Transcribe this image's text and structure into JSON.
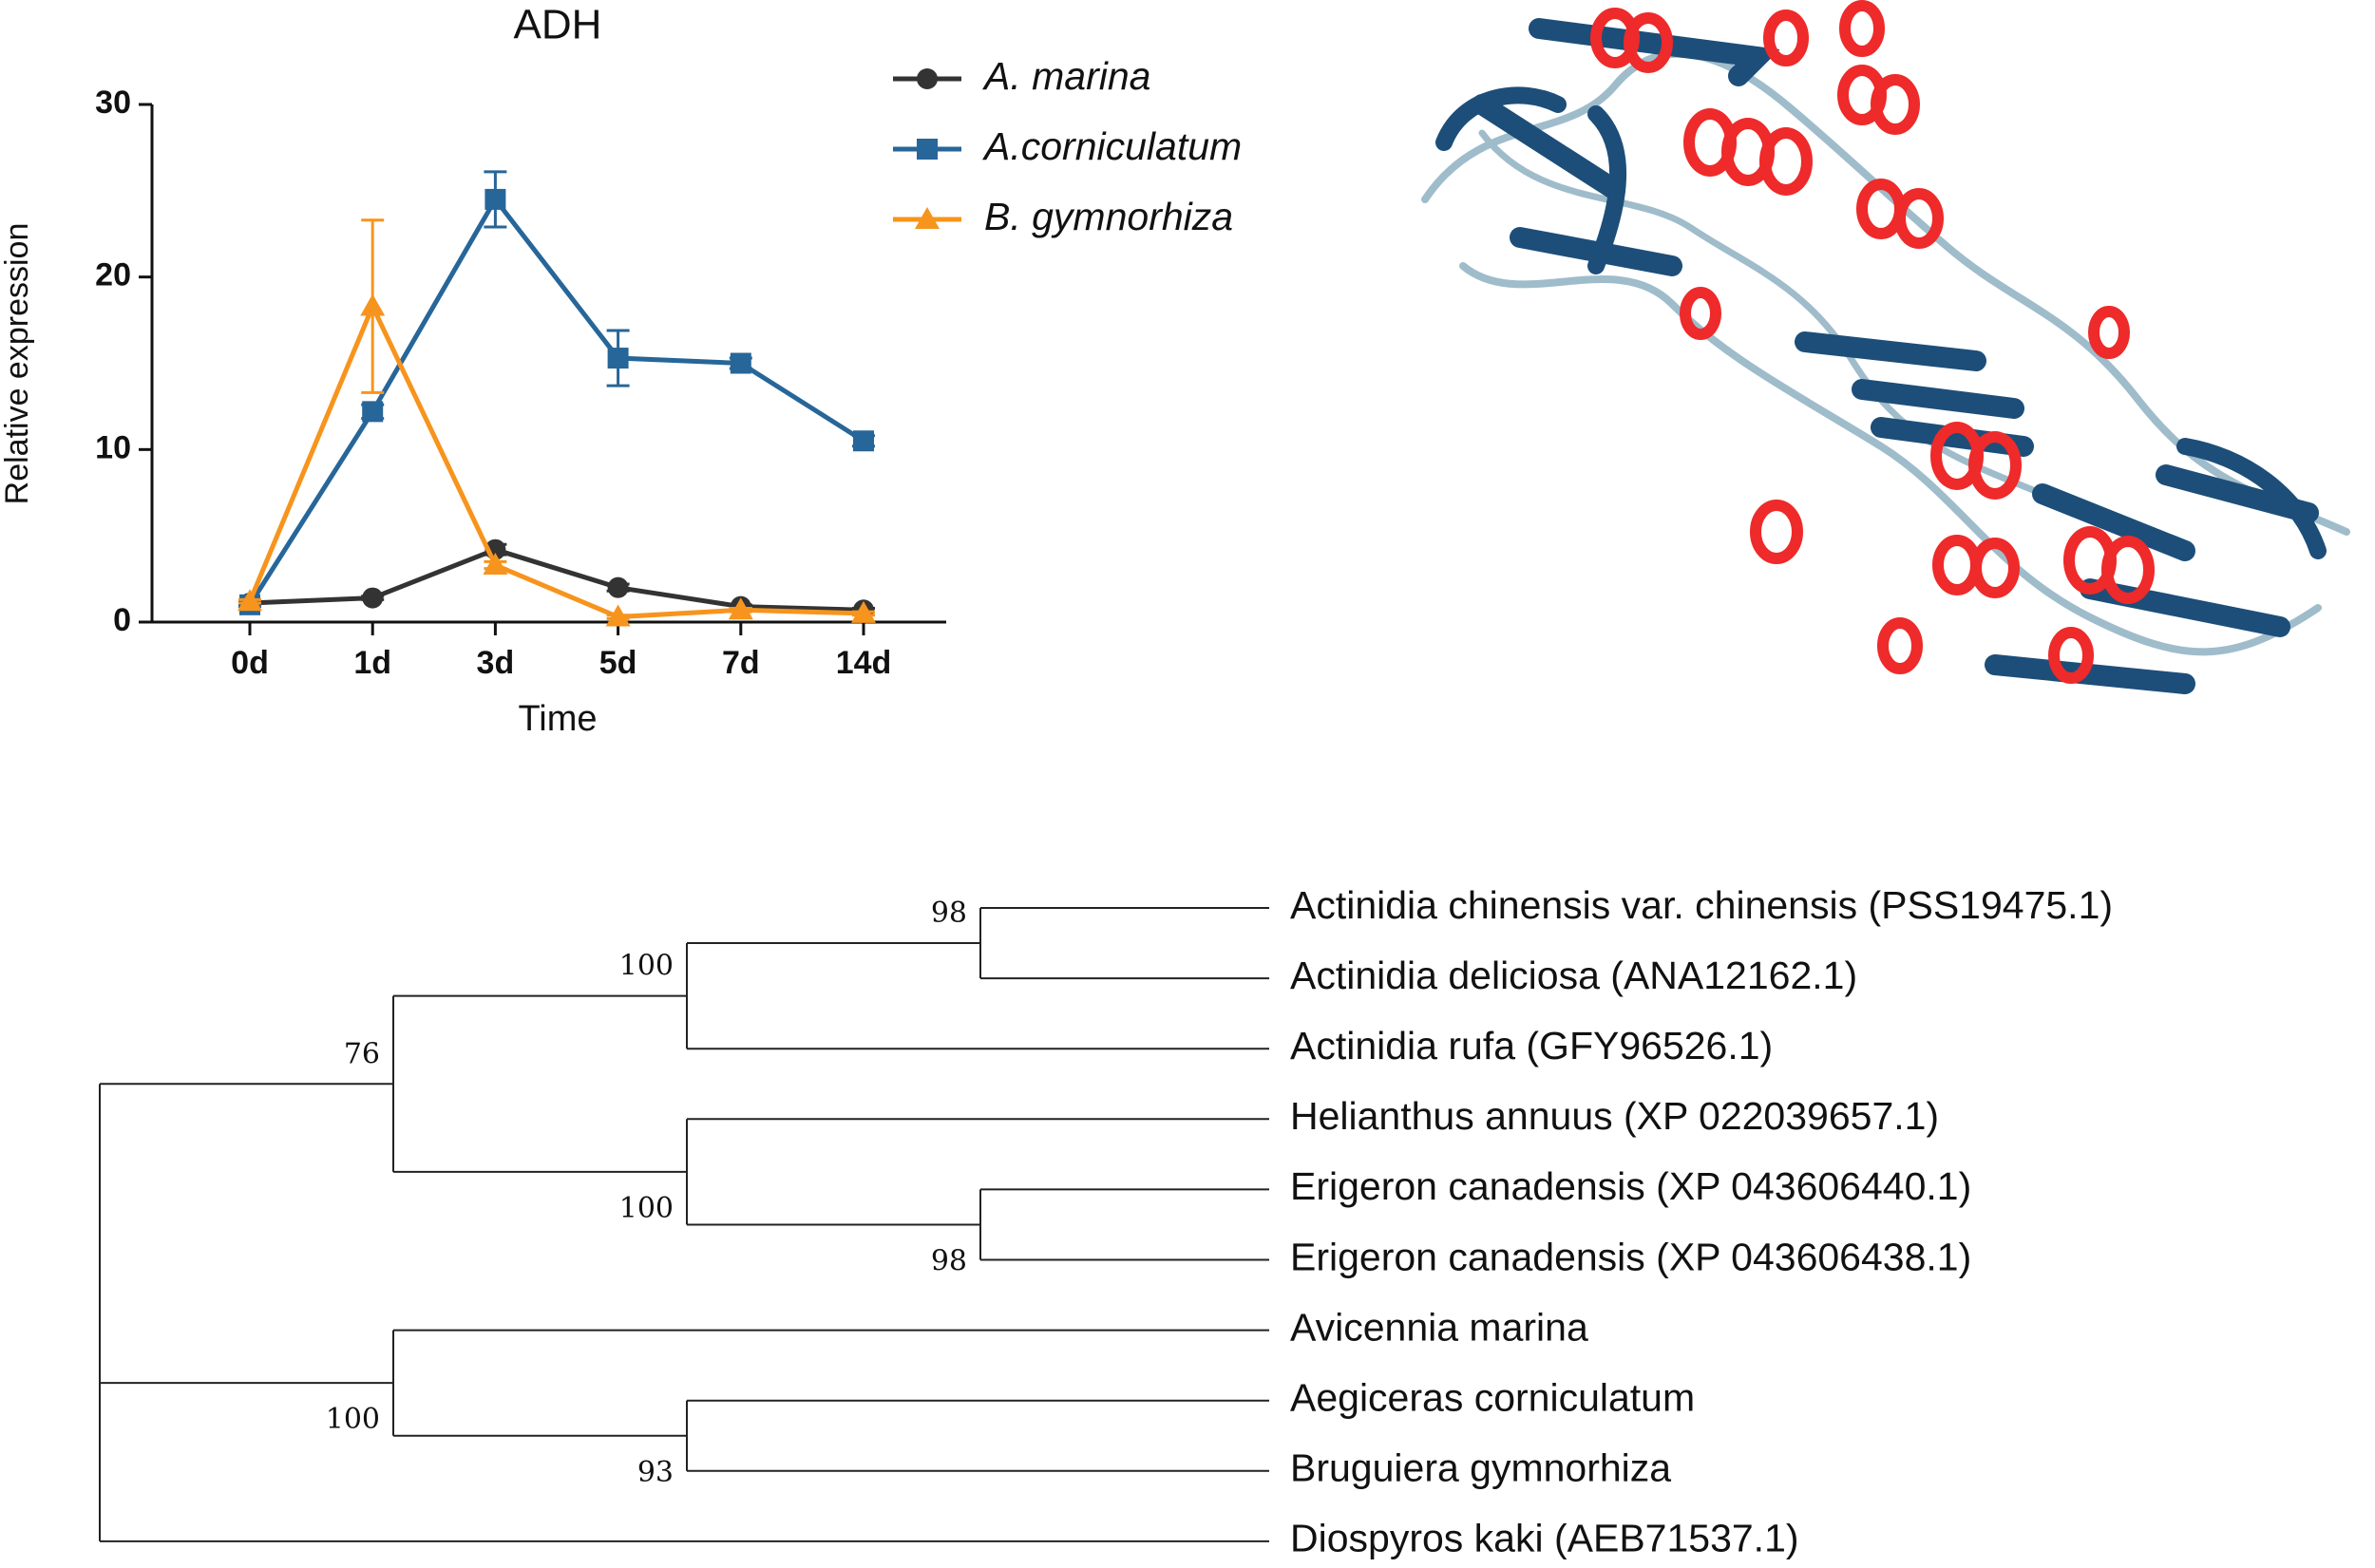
{
  "chart_data": {
    "type": "line",
    "title": "ADH",
    "x_label": "Time",
    "y_label": "Relative expression",
    "categories": [
      "0d",
      "1d",
      "3d",
      "5d",
      "7d",
      "14d"
    ],
    "ylim": [
      0,
      30
    ],
    "yticks": [
      0,
      10,
      20,
      30
    ],
    "series": [
      {
        "name": "A. marina",
        "color": "#333333",
        "marker": "circle",
        "values": [
          1.1,
          1.4,
          4.2,
          2.0,
          0.9,
          0.7
        ],
        "errors": [
          0.1,
          0.1,
          0.3,
          0.2,
          0.1,
          0.1
        ]
      },
      {
        "name": "A.corniculatum",
        "color": "#276699",
        "marker": "square",
        "values": [
          1.0,
          12.2,
          24.5,
          15.3,
          15.0,
          10.5
        ],
        "errors": [
          0.1,
          0.4,
          1.6,
          1.6,
          0.3,
          0.3
        ]
      },
      {
        "name": "B. gymnorhiza",
        "color": "#f7941d",
        "marker": "triangle",
        "values": [
          1.2,
          18.3,
          3.3,
          0.3,
          0.7,
          0.5
        ],
        "errors": [
          0.1,
          5.0,
          0.2,
          0.1,
          0.1,
          0.1
        ]
      }
    ]
  },
  "tree": {
    "children": [
      {
        "label": "76",
        "children": [
          {
            "label": "100",
            "children": [
              {
                "label": "98",
                "children": [
                  {
                    "name": "Actinidia chinensis var. chinensis (PSS19475.1)"
                  },
                  {
                    "name": "Actinidia deliciosa (ANA12162.1)"
                  }
                ]
              },
              {
                "name": "Actinidia rufa (GFY96526.1)"
              }
            ]
          },
          {
            "label": "100",
            "children": [
              {
                "name": "Helianthus annuus (XP 022039657.1)"
              },
              {
                "label": "98",
                "children": [
                  {
                    "name": "Erigeron canadensis (XP 043606440.1)"
                  },
                  {
                    "name": "Erigeron canadensis (XP 043606438.1)"
                  }
                ]
              }
            ]
          }
        ]
      },
      {
        "label": "100",
        "children": [
          {
            "name": "Avicennia marina"
          },
          {
            "label": "93",
            "children": [
              {
                "name": "Aegiceras corniculatum"
              },
              {
                "name": "Bruguiera gymnorhiza"
              }
            ]
          }
        ]
      },
      {
        "name": "Diospyros kaki (AEB71537.1)"
      }
    ]
  }
}
